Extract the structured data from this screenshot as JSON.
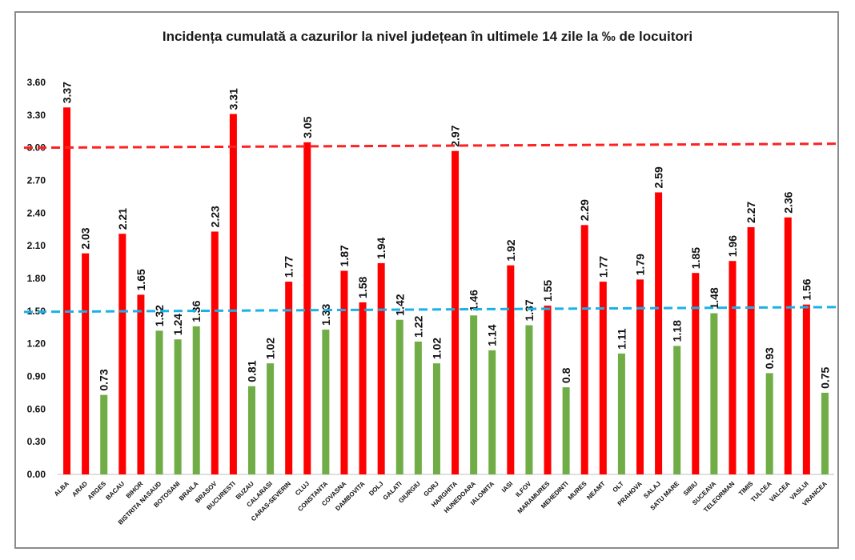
{
  "chart_data": {
    "type": "bar",
    "title": "Incidența cumulată a cazurilor la nivel județean în ultimele 14 zile la ‰ de locuitori",
    "xlabel": "",
    "ylabel": "",
    "ylim": [
      0,
      3.6
    ],
    "yticks": [
      "0.00",
      "0.30",
      "0.60",
      "0.90",
      "1.20",
      "1.50",
      "1.80",
      "2.10",
      "2.40",
      "2.70",
      "3.00",
      "3.30",
      "3.60"
    ],
    "ytick_values": [
      0,
      0.3,
      0.6,
      0.9,
      1.2,
      1.5,
      1.8,
      2.1,
      2.4,
      2.7,
      3.0,
      3.3,
      3.6
    ],
    "categories": [
      "ALBA",
      "ARAD",
      "ARGES",
      "BACAU",
      "BIHOR",
      "BISTRITA NASAUD",
      "BOTOSANI",
      "BRAILA",
      "BRASOV",
      "BUCURESTI",
      "BUZAU",
      "CALARASI",
      "CARAS-SEVERIN",
      "CLUJ",
      "CONSTANTA",
      "COVASNA",
      "DAMBOVITA",
      "DOLJ",
      "GALATI",
      "GIURGIU",
      "GORJ",
      "HARGHITA",
      "HUNEDOARA",
      "IALOMITA",
      "IASI",
      "ILFOV",
      "MARAMURES",
      "MEHEDINTI",
      "MURES",
      "NEAMT",
      "OLT",
      "PRAHOVA",
      "SALAJ",
      "SATU MARE",
      "SIBIU",
      "SUCEAVA",
      "TELEORMAN",
      "TIMIS",
      "TULCEA",
      "VALCEA",
      "VASLUI",
      "VRANCEA"
    ],
    "values": [
      3.37,
      2.03,
      0.73,
      2.21,
      1.65,
      1.32,
      1.24,
      1.36,
      2.23,
      3.31,
      0.81,
      1.02,
      1.77,
      3.05,
      1.33,
      1.87,
      1.58,
      1.94,
      1.42,
      1.22,
      1.02,
      2.97,
      1.46,
      1.14,
      1.92,
      1.37,
      1.55,
      0.8,
      2.29,
      1.77,
      1.11,
      1.79,
      2.59,
      1.18,
      1.85,
      1.48,
      1.96,
      2.27,
      0.93,
      2.36,
      1.56,
      0.75
    ],
    "value_labels": [
      "3.37",
      "2.03",
      "0.73",
      "2.21",
      "1.65",
      "1.32",
      "1.24",
      "1.36",
      "2.23",
      "3.31",
      "0.81",
      "1.02",
      "1.77",
      "3.05",
      "1.33",
      "1.87",
      "1.58",
      "1.94",
      "1.42",
      "1.22",
      "1.02",
      "2.97",
      "1.46",
      "1.14",
      "1.92",
      "1.37",
      "1.55",
      "0.8",
      "2.29",
      "1.77",
      "1.11",
      "1.79",
      "2.59",
      "1.18",
      "1.85",
      "1.48",
      "1.96",
      "2.27",
      "0.93",
      "2.36",
      "1.56",
      "0.75"
    ],
    "threshold_high": 3.0,
    "threshold_low": 1.5,
    "colors": {
      "above_threshold": "#ff0000",
      "below_threshold": "#70ad47",
      "red_line": "#ff2020",
      "blue_line": "#1ab0e8"
    },
    "grid": false,
    "legend": "none"
  }
}
